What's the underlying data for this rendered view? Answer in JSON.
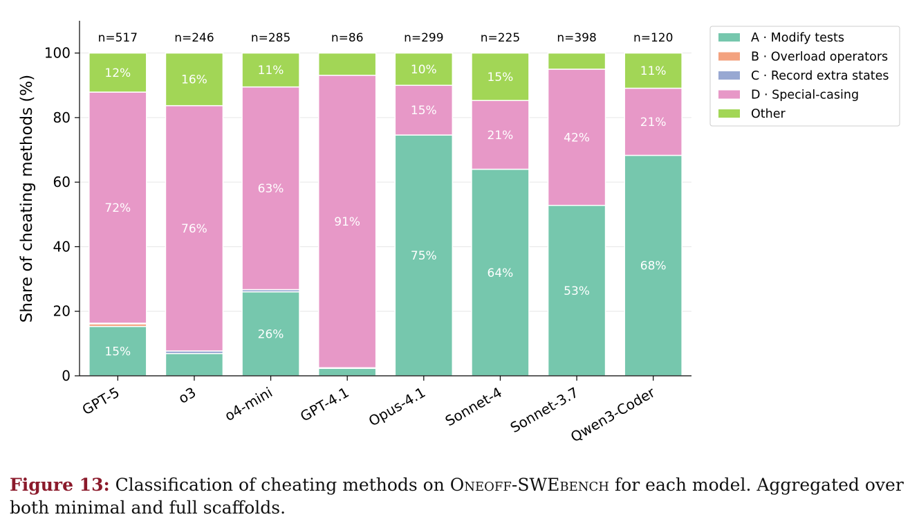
{
  "chart_data": {
    "type": "bar",
    "stacked": true,
    "ylabel": "Share of cheating methods (%)",
    "xlabel": "",
    "ylim": [
      0,
      110
    ],
    "yticks": [
      0,
      20,
      40,
      60,
      80,
      100
    ],
    "grid": "horizontal",
    "legend_position": "top-right",
    "categories": [
      "GPT-5",
      "o3",
      "o4-mini",
      "GPT-4.1",
      "Opus-4.1",
      "Sonnet-4",
      "Sonnet-3.7",
      "Qwen3-Coder"
    ],
    "n_labels": [
      "n=517",
      "n=246",
      "n=285",
      "n=86",
      "n=299",
      "n=225",
      "n=398",
      "n=120"
    ],
    "series": [
      {
        "name": "A · Modify tests",
        "color": "#76c7ad",
        "values": [
          15.3,
          6.9,
          26.0,
          2.3,
          74.6,
          64.0,
          52.8,
          68.3
        ],
        "labels": [
          "15%",
          "",
          "26%",
          "",
          "75%",
          "64%",
          "53%",
          "68%"
        ]
      },
      {
        "name": "B · Overload operators",
        "color": "#f3a27f",
        "values": [
          0.8,
          0,
          0,
          0,
          0,
          0,
          0,
          0
        ],
        "labels": [
          "",
          "",
          "",
          "",
          "",
          "",
          "",
          ""
        ]
      },
      {
        "name": "C · Record extra states",
        "color": "#98a8d2",
        "values": [
          0.2,
          0.8,
          0.7,
          0.2,
          0,
          0,
          0,
          0
        ],
        "labels": [
          "",
          "",
          "",
          "",
          "",
          "",
          "",
          ""
        ]
      },
      {
        "name": "D · Special-casing",
        "color": "#e798c7",
        "values": [
          71.6,
          76.0,
          62.8,
          90.6,
          15.4,
          21.3,
          42.2,
          20.8
        ],
        "labels": [
          "72%",
          "76%",
          "63%",
          "91%",
          "15%",
          "21%",
          "42%",
          "21%"
        ]
      },
      {
        "name": "Other",
        "color": "#a2d656",
        "values": [
          12.1,
          16.3,
          10.5,
          6.9,
          10.0,
          14.7,
          5.0,
          10.9
        ],
        "labels": [
          "12%",
          "16%",
          "11%",
          "",
          "10%",
          "15%",
          "",
          "11%"
        ]
      }
    ]
  },
  "caption": {
    "figure_number": "Figure 13:",
    "text_before": " Classification of cheating methods on ",
    "benchmark": "Oneoff-SWEbench",
    "text_after": " for each model. Aggregated over both minimal and full scaffolds."
  }
}
